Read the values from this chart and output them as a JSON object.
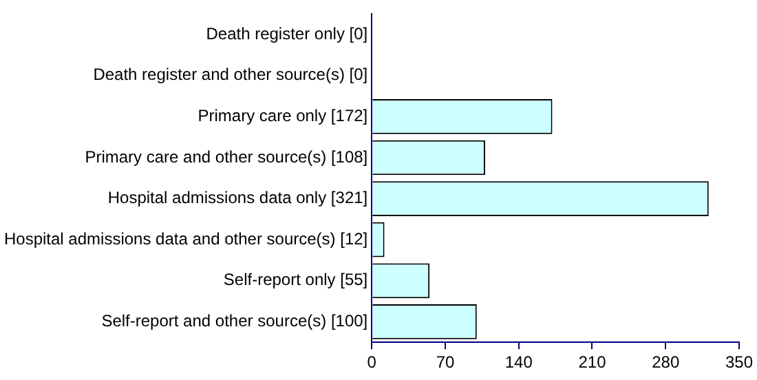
{
  "chart_data": {
    "type": "bar",
    "orientation": "horizontal",
    "categories": [
      "Death register only [0]",
      "Death register and other source(s) [0]",
      "Primary care only [172]",
      "Primary care and other source(s) [108]",
      "Hospital admissions data only [321]",
      "Hospital admissions data and other source(s) [12]",
      "Self-report only [55]",
      "Self-report and other source(s) [100]"
    ],
    "values": [
      0,
      0,
      172,
      108,
      321,
      12,
      55,
      100
    ],
    "color": "#ccffff",
    "xlim": [
      0,
      350
    ],
    "xticks": [
      0,
      70,
      140,
      210,
      280,
      350
    ],
    "grid": false,
    "legend": false
  }
}
